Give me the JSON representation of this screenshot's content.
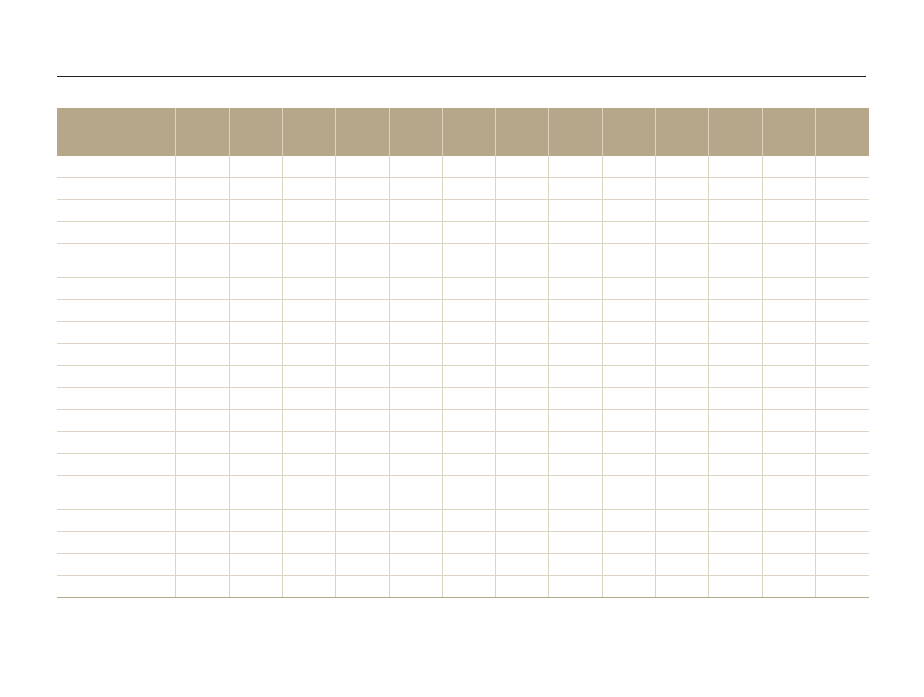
{
  "colors": {
    "header_bg": "#b7a78a",
    "grid_line": "#dcd3c1",
    "rule": "#231f20"
  },
  "table": {
    "headers": [
      "",
      "",
      "",
      "",
      "",
      "",
      "",
      "",
      "",
      "",
      "",
      "",
      "",
      ""
    ],
    "rows": [
      {
        "tall": false,
        "cells": [
          "",
          "",
          "",
          "",
          "",
          "",
          "",
          "",
          "",
          "",
          "",
          "",
          "",
          ""
        ]
      },
      {
        "tall": false,
        "cells": [
          "",
          "",
          "",
          "",
          "",
          "",
          "",
          "",
          "",
          "",
          "",
          "",
          "",
          ""
        ]
      },
      {
        "tall": false,
        "cells": [
          "",
          "",
          "",
          "",
          "",
          "",
          "",
          "",
          "",
          "",
          "",
          "",
          "",
          ""
        ]
      },
      {
        "tall": false,
        "cells": [
          "",
          "",
          "",
          "",
          "",
          "",
          "",
          "",
          "",
          "",
          "",
          "",
          "",
          ""
        ]
      },
      {
        "tall": true,
        "cells": [
          "",
          "",
          "",
          "",
          "",
          "",
          "",
          "",
          "",
          "",
          "",
          "",
          "",
          ""
        ]
      },
      {
        "tall": false,
        "cells": [
          "",
          "",
          "",
          "",
          "",
          "",
          "",
          "",
          "",
          "",
          "",
          "",
          "",
          ""
        ]
      },
      {
        "tall": false,
        "cells": [
          "",
          "",
          "",
          "",
          "",
          "",
          "",
          "",
          "",
          "",
          "",
          "",
          "",
          ""
        ]
      },
      {
        "tall": false,
        "cells": [
          "",
          "",
          "",
          "",
          "",
          "",
          "",
          "",
          "",
          "",
          "",
          "",
          "",
          ""
        ]
      },
      {
        "tall": false,
        "cells": [
          "",
          "",
          "",
          "",
          "",
          "",
          "",
          "",
          "",
          "",
          "",
          "",
          "",
          ""
        ]
      },
      {
        "tall": false,
        "cells": [
          "",
          "",
          "",
          "",
          "",
          "",
          "",
          "",
          "",
          "",
          "",
          "",
          "",
          ""
        ]
      },
      {
        "tall": false,
        "cells": [
          "",
          "",
          "",
          "",
          "",
          "",
          "",
          "",
          "",
          "",
          "",
          "",
          "",
          ""
        ]
      },
      {
        "tall": false,
        "cells": [
          "",
          "",
          "",
          "",
          "",
          "",
          "",
          "",
          "",
          "",
          "",
          "",
          "",
          ""
        ]
      },
      {
        "tall": false,
        "cells": [
          "",
          "",
          "",
          "",
          "",
          "",
          "",
          "",
          "",
          "",
          "",
          "",
          "",
          ""
        ]
      },
      {
        "tall": false,
        "cells": [
          "",
          "",
          "",
          "",
          "",
          "",
          "",
          "",
          "",
          "",
          "",
          "",
          "",
          ""
        ]
      },
      {
        "tall": true,
        "cells": [
          "",
          "",
          "",
          "",
          "",
          "",
          "",
          "",
          "",
          "",
          "",
          "",
          "",
          ""
        ]
      },
      {
        "tall": false,
        "cells": [
          "",
          "",
          "",
          "",
          "",
          "",
          "",
          "",
          "",
          "",
          "",
          "",
          "",
          ""
        ]
      },
      {
        "tall": false,
        "cells": [
          "",
          "",
          "",
          "",
          "",
          "",
          "",
          "",
          "",
          "",
          "",
          "",
          "",
          ""
        ]
      },
      {
        "tall": false,
        "cells": [
          "",
          "",
          "",
          "",
          "",
          "",
          "",
          "",
          "",
          "",
          "",
          "",
          "",
          ""
        ]
      },
      {
        "tall": false,
        "cells": [
          "",
          "",
          "",
          "",
          "",
          "",
          "",
          "",
          "",
          "",
          "",
          "",
          "",
          ""
        ]
      }
    ]
  }
}
